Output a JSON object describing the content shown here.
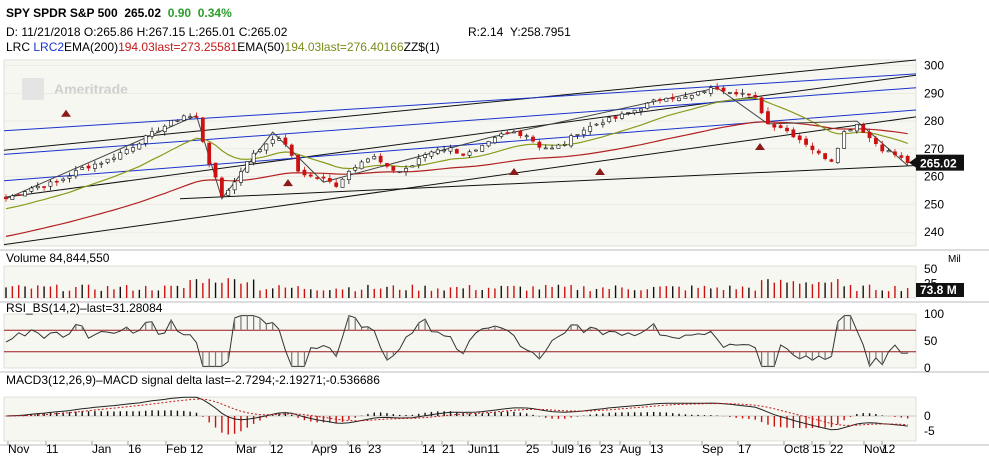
{
  "header": {
    "symbol": "SPY",
    "name": "SPDR S&P 500",
    "last": "265.02",
    "change": "0.90",
    "change_pct": "0.34%",
    "date_label": "D: 11/21/2018",
    "open_label": "O:265.86",
    "high_label": "H:267.15",
    "low_label": "L:265.01",
    "close_label": "C:265.02",
    "r_label": "R:2.14",
    "y_label": "Y:258.7951"
  },
  "studies": {
    "lrc": "LRC",
    "lrc2": "LRC2",
    "ema200": "EMA(200)",
    "ema200_val": "194.03last=273.25581",
    "ema50": "EMA(50)",
    "ema50_val": "194.03last=276.40166",
    "zz": "ZZ$(1)"
  },
  "watermark": "Ameritrade",
  "volume": {
    "label": "Volume",
    "value": "84,844,550",
    "last_badge": "73.8 M",
    "unit": "Mil"
  },
  "rsi": {
    "label": "RSI_BS(14,2)",
    "last": "last=31.28084"
  },
  "macd": {
    "label": "MACD3(12,26,9)",
    "macd": "MACD",
    "signal": "signal",
    "delta": "delta",
    "last": "last=-2.7294;-2.19271;-0.536686"
  },
  "price_badge": "265.02",
  "colors": {
    "up": "#111111",
    "down": "#cc1111",
    "ema200": "#b22222",
    "ema50": "#8a9a1b",
    "lrc": "#111111",
    "lrc2": "#1a33cc",
    "panel_bg": "#f7f7f2",
    "badge": "#111111"
  },
  "chart_data": {
    "type": "candlestick",
    "x": [
      "Nov",
      "11",
      "Jan",
      "16",
      "Feb",
      "12",
      "Mar",
      "12",
      "Apr",
      "9",
      "16",
      "23",
      "14",
      "21",
      "Jun",
      "11",
      "25",
      "Jul",
      "9",
      "16",
      "23",
      "Aug",
      "13",
      "Sep",
      "17",
      "Oct",
      "8",
      "15",
      "22",
      "Nov",
      "12"
    ],
    "xtick_labels": [
      "Nov",
      "11",
      "Jan",
      "16",
      "Feb 12",
      "Mar",
      "12",
      "Apr9",
      "16",
      "23",
      "14",
      "21",
      "Jun11",
      "25",
      "Jul9",
      "16",
      "23",
      "Aug",
      "13",
      "Sep",
      "17",
      "Oct8",
      "15",
      "22",
      "Nov",
      "12"
    ],
    "price_axis": {
      "ylim": [
        235,
        302
      ],
      "ticks": [
        240,
        250,
        260,
        270,
        280,
        290,
        300
      ]
    },
    "volume_axis": {
      "ticks": [
        25,
        50
      ],
      "unit": "Mil"
    },
    "rsi_axis": {
      "ylim": [
        0,
        100
      ],
      "ticks": [
        0,
        50,
        100
      ],
      "levels": [
        30,
        70
      ]
    },
    "macd_axis": {
      "ticks": [
        -5,
        0
      ]
    },
    "close_anchors": [
      [
        0,
        252
      ],
      [
        4,
        256
      ],
      [
        8,
        258
      ],
      [
        12,
        263
      ],
      [
        16,
        266
      ],
      [
        20,
        271
      ],
      [
        24,
        277
      ],
      [
        28,
        282
      ],
      [
        30,
        281
      ],
      [
        32,
        265
      ],
      [
        34,
        253
      ],
      [
        36,
        258
      ],
      [
        38,
        266
      ],
      [
        40,
        270
      ],
      [
        42,
        274
      ],
      [
        44,
        272
      ],
      [
        46,
        262
      ],
      [
        48,
        260
      ],
      [
        50,
        259
      ],
      [
        52,
        257
      ],
      [
        54,
        262
      ],
      [
        56,
        266
      ],
      [
        58,
        267
      ],
      [
        60,
        263
      ],
      [
        62,
        262
      ],
      [
        64,
        264
      ],
      [
        66,
        268
      ],
      [
        68,
        270
      ],
      [
        70,
        270
      ],
      [
        72,
        268
      ],
      [
        74,
        269
      ],
      [
        76,
        272
      ],
      [
        78,
        275
      ],
      [
        80,
        276
      ],
      [
        82,
        275
      ],
      [
        84,
        271
      ],
      [
        86,
        270
      ],
      [
        88,
        272
      ],
      [
        90,
        276
      ],
      [
        92,
        278
      ],
      [
        94,
        280
      ],
      [
        96,
        281
      ],
      [
        98,
        283
      ],
      [
        100,
        285
      ],
      [
        102,
        287
      ],
      [
        104,
        289
      ],
      [
        106,
        288
      ],
      [
        108,
        289
      ],
      [
        110,
        291
      ],
      [
        112,
        292
      ],
      [
        114,
        291
      ],
      [
        116,
        290
      ],
      [
        118,
        288
      ],
      [
        120,
        279
      ],
      [
        122,
        278
      ],
      [
        124,
        275
      ],
      [
        126,
        272
      ],
      [
        128,
        268
      ],
      [
        130,
        266
      ],
      [
        132,
        276
      ],
      [
        134,
        279
      ],
      [
        136,
        274
      ],
      [
        138,
        270
      ],
      [
        140,
        268
      ],
      [
        142,
        265
      ]
    ],
    "last_close": 265.02,
    "series": [
      {
        "name": "EMA(200)",
        "last": 273.25581
      },
      {
        "name": "EMA(50)",
        "last": 276.40166
      }
    ],
    "rsi_last": 31.28084,
    "macd_last": [
      -2.7294,
      -2.19271,
      -0.536686
    ]
  }
}
